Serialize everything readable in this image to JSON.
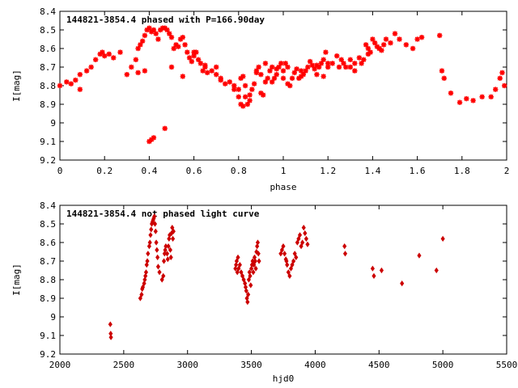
{
  "chart_data": [
    {
      "type": "scatter",
      "title": "144821-3854.4 phased with P=166.90day",
      "xlabel": "phase",
      "ylabel": "I[mag]",
      "xlim": [
        0,
        2
      ],
      "ylim": [
        9.2,
        8.4
      ],
      "y_inverted": true,
      "grid": false,
      "xticks": [
        "0",
        "0.2",
        "0.4",
        "0.6",
        "0.8",
        "1",
        "1.2",
        "1.4",
        "1.6",
        "1.8",
        "2"
      ],
      "yticks": [
        "8.4",
        "8.5",
        "8.6",
        "8.7",
        "8.8",
        "8.9",
        "9",
        "9.1",
        "9.2"
      ],
      "marker_color": "#ff0000",
      "series": [
        {
          "x": [
            0.0,
            0.03,
            0.05,
            0.07,
            0.09,
            0.09,
            0.12,
            0.14,
            0.16,
            0.18,
            0.19,
            0.2,
            0.22,
            0.24,
            0.27,
            0.3,
            0.32,
            0.34,
            0.35,
            0.36,
            0.37,
            0.38,
            0.39,
            0.4,
            0.41,
            0.42,
            0.43,
            0.44,
            0.45,
            0.46,
            0.47,
            0.48,
            0.49,
            0.5,
            0.51,
            0.52,
            0.53,
            0.54,
            0.55,
            0.56,
            0.57,
            0.58,
            0.59,
            0.6,
            0.61,
            0.62,
            0.63,
            0.64,
            0.65,
            0.66,
            0.68,
            0.7,
            0.72,
            0.74,
            0.76,
            0.78,
            0.8,
            0.81,
            0.82,
            0.83,
            0.83,
            0.84,
            0.85,
            0.86,
            0.87,
            0.88,
            0.89,
            0.9,
            0.91,
            0.92,
            0.93,
            0.94,
            0.95,
            0.96,
            0.97,
            0.98,
            0.99,
            1.0,
            1.0,
            1.01,
            1.02,
            1.03,
            1.04,
            1.05,
            1.06,
            1.07,
            1.08,
            1.09,
            1.1,
            1.11,
            1.12,
            1.13,
            1.14,
            1.15,
            1.16,
            1.17,
            1.18,
            1.19,
            1.2,
            1.22,
            1.24,
            1.26,
            1.28,
            1.3,
            1.32,
            1.34,
            1.35,
            1.36,
            1.37,
            1.38,
            1.39,
            1.4,
            1.41,
            1.42,
            1.43,
            1.44,
            1.45,
            1.46,
            1.48,
            1.5,
            1.52,
            1.55,
            1.58,
            1.6,
            1.62,
            1.7,
            1.71,
            1.72,
            1.75,
            1.79,
            1.82,
            1.85,
            1.89,
            1.93,
            1.95,
            1.97,
            1.98,
            1.99,
            0.4,
            0.41,
            0.42,
            0.47,
            0.6,
            0.7,
            0.78,
            0.8,
            0.81,
            0.82,
            0.85,
            0.9,
            0.95,
            1.2,
            1.25,
            1.3,
            0.35,
            0.38,
            0.5,
            0.55,
            0.65,
            0.72,
            0.88,
            0.92,
            0.97,
            1.02,
            1.08,
            1.15,
            1.18,
            1.27,
            1.32,
            1.38,
            1.43
          ],
          "y": [
            8.8,
            8.78,
            8.79,
            8.77,
            8.74,
            8.82,
            8.72,
            8.7,
            8.66,
            8.63,
            8.62,
            8.64,
            8.63,
            8.65,
            8.62,
            8.74,
            8.7,
            8.66,
            8.6,
            8.58,
            8.56,
            8.53,
            8.5,
            8.49,
            8.51,
            8.5,
            8.52,
            8.55,
            8.5,
            8.49,
            8.49,
            8.5,
            8.52,
            8.54,
            8.6,
            8.58,
            8.59,
            8.55,
            8.54,
            8.58,
            8.62,
            8.65,
            8.67,
            8.64,
            8.62,
            8.66,
            8.68,
            8.72,
            8.7,
            8.73,
            8.72,
            8.7,
            8.77,
            8.79,
            8.78,
            8.8,
            8.82,
            8.76,
            8.75,
            8.8,
            8.86,
            8.9,
            8.88,
            8.82,
            8.79,
            8.72,
            8.7,
            8.74,
            8.85,
            8.68,
            8.76,
            8.72,
            8.7,
            8.76,
            8.74,
            8.7,
            8.68,
            8.72,
            8.76,
            8.68,
            8.7,
            8.8,
            8.76,
            8.73,
            8.71,
            8.76,
            8.75,
            8.74,
            8.72,
            8.7,
            8.67,
            8.69,
            8.71,
            8.74,
            8.7,
            8.68,
            8.66,
            8.62,
            8.7,
            8.68,
            8.64,
            8.66,
            8.7,
            8.7,
            8.68,
            8.65,
            8.68,
            8.66,
            8.58,
            8.6,
            8.62,
            8.55,
            8.57,
            8.59,
            8.6,
            8.61,
            8.58,
            8.55,
            8.57,
            8.52,
            8.55,
            8.58,
            8.6,
            8.55,
            8.54,
            8.53,
            8.72,
            8.76,
            8.84,
            8.89,
            8.87,
            8.88,
            8.86,
            8.86,
            8.82,
            8.76,
            8.73,
            8.8,
            9.1,
            9.09,
            9.08,
            9.03,
            8.62,
            8.74,
            8.82,
            8.86,
            8.9,
            8.91,
            8.85,
            8.84,
            8.78,
            8.68,
            8.7,
            8.66,
            8.73,
            8.72,
            8.7,
            8.75,
            8.69,
            8.76,
            8.73,
            8.78,
            8.71,
            8.79,
            8.72,
            8.69,
            8.75,
            8.68,
            8.72,
            8.63,
            8.6
          ]
        }
      ]
    },
    {
      "type": "scatter",
      "title": "144821-3854.4 not phased light curve",
      "xlabel": "hjd0",
      "ylabel": "I[mag]",
      "xlim": [
        2000,
        5500
      ],
      "ylim": [
        9.2,
        8.4
      ],
      "y_inverted": true,
      "grid": false,
      "xticks": [
        "2000",
        "2500",
        "3000",
        "3500",
        "4000",
        "4500",
        "5000",
        "5500"
      ],
      "yticks": [
        "8.4",
        "8.5",
        "8.6",
        "8.7",
        "8.8",
        "8.9",
        "9",
        "9.1",
        "9.2"
      ],
      "marker_color": "#cc0000",
      "series": [
        {
          "x": [
            2395,
            2398,
            2400,
            2630,
            2640,
            2645,
            2650,
            2660,
            2665,
            2670,
            2675,
            2680,
            2685,
            2690,
            2700,
            2705,
            2710,
            2715,
            2720,
            2725,
            2730,
            2735,
            2740,
            2745,
            2750,
            2755,
            2760,
            2765,
            2770,
            2780,
            2800,
            2810,
            2815,
            2820,
            2825,
            2830,
            2840,
            2845,
            2850,
            2855,
            2860,
            2865,
            2870,
            2875,
            2880,
            2885,
            2890,
            3375,
            3380,
            3385,
            3390,
            3395,
            3400,
            3410,
            3420,
            3430,
            3440,
            3450,
            3455,
            3460,
            3465,
            3470,
            3475,
            3480,
            3485,
            3490,
            3495,
            3500,
            3505,
            3510,
            3515,
            3520,
            3525,
            3530,
            3535,
            3540,
            3545,
            3550,
            3555,
            3560,
            3730,
            3740,
            3750,
            3760,
            3770,
            3775,
            3780,
            3790,
            3800,
            3810,
            3820,
            3830,
            3840,
            3850,
            3860,
            3870,
            3880,
            3890,
            3900,
            3910,
            3920,
            3930,
            3940,
            4230,
            4235,
            4450,
            4460,
            4520,
            4680,
            4815,
            4950,
            5000
          ],
          "y": [
            9.04,
            9.09,
            9.11,
            8.9,
            8.88,
            8.85,
            8.84,
            8.82,
            8.8,
            8.78,
            8.76,
            8.72,
            8.7,
            8.66,
            8.62,
            8.6,
            8.56,
            8.53,
            8.5,
            8.49,
            8.48,
            8.47,
            8.46,
            8.5,
            8.54,
            8.6,
            8.64,
            8.68,
            8.73,
            8.76,
            8.8,
            8.78,
            8.7,
            8.66,
            8.64,
            8.62,
            8.66,
            8.69,
            8.62,
            8.58,
            8.56,
            8.64,
            8.68,
            8.55,
            8.52,
            8.58,
            8.54,
            8.74,
            8.72,
            8.7,
            8.76,
            8.68,
            8.74,
            8.72,
            8.76,
            8.78,
            8.8,
            8.82,
            8.84,
            8.86,
            8.9,
            8.92,
            8.88,
            8.8,
            8.76,
            8.78,
            8.83,
            8.74,
            8.72,
            8.7,
            8.76,
            8.72,
            8.68,
            8.7,
            8.74,
            8.65,
            8.62,
            8.6,
            8.66,
            8.7,
            8.66,
            8.64,
            8.62,
            8.66,
            8.69,
            8.7,
            8.72,
            8.76,
            8.78,
            8.74,
            8.72,
            8.7,
            8.66,
            8.68,
            8.6,
            8.58,
            8.56,
            8.62,
            8.6,
            8.52,
            8.55,
            8.58,
            8.61,
            8.62,
            8.66,
            8.74,
            8.78,
            8.75,
            8.82,
            8.67,
            8.75,
            8.58
          ]
        }
      ]
    }
  ]
}
